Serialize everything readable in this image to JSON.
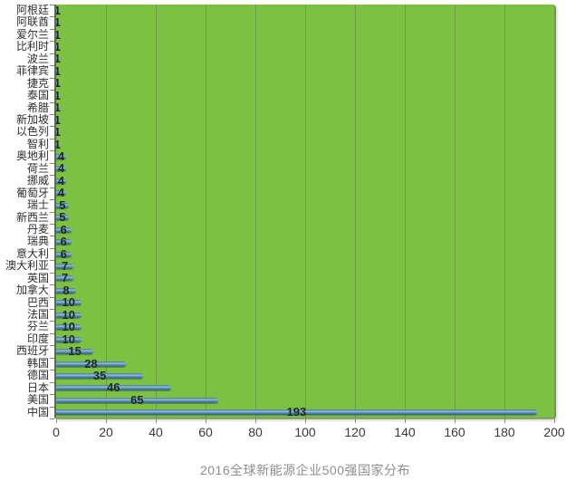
{
  "title": "2016全球新能源企业500强国家分布",
  "chart_data": {
    "type": "bar",
    "orientation": "horizontal",
    "title": "2016全球新能源企业500强国家分布",
    "categories": [
      "阿根廷",
      "阿联酋",
      "爱尔兰",
      "比利时",
      "波兰",
      "菲律宾",
      "捷克",
      "泰国",
      "希腊",
      "新加坡",
      "以色列",
      "智利",
      "奥地利",
      "荷兰",
      "挪威",
      "葡萄牙",
      "瑞士",
      "新西兰",
      "丹麦",
      "瑞典",
      "意大利",
      "澳大利亚",
      "英国",
      "加拿大",
      "巴西",
      "法国",
      "芬兰",
      "印度",
      "西班牙",
      "韩国",
      "德国",
      "日本",
      "美国",
      "中国"
    ],
    "values": [
      1,
      1,
      1,
      1,
      1,
      1,
      1,
      1,
      1,
      1,
      1,
      1,
      4,
      4,
      4,
      4,
      5,
      5,
      6,
      6,
      6,
      7,
      7,
      8,
      10,
      10,
      10,
      10,
      15,
      28,
      35,
      46,
      65,
      193
    ],
    "xlabel": "",
    "ylabel": "",
    "xlim": [
      0,
      200
    ],
    "x_ticks": [
      0,
      20,
      40,
      60,
      80,
      100,
      120,
      140,
      160,
      180,
      200
    ],
    "grid": true,
    "legend": false,
    "value_labels": "center",
    "styles": {
      "plot_bg": "#7dc142",
      "gridline_color": "#6d9b49",
      "bar_top": "#477a95",
      "bar_light": "#93bdd4",
      "bar_mid": "#568db2",
      "bar_dark": "#2f5f82",
      "value_label_color": "#1c2a1c",
      "y_label_color": "#2f2f2f",
      "x_label_color": "#3a3a3a",
      "title_color": "#8e8e8e"
    }
  }
}
